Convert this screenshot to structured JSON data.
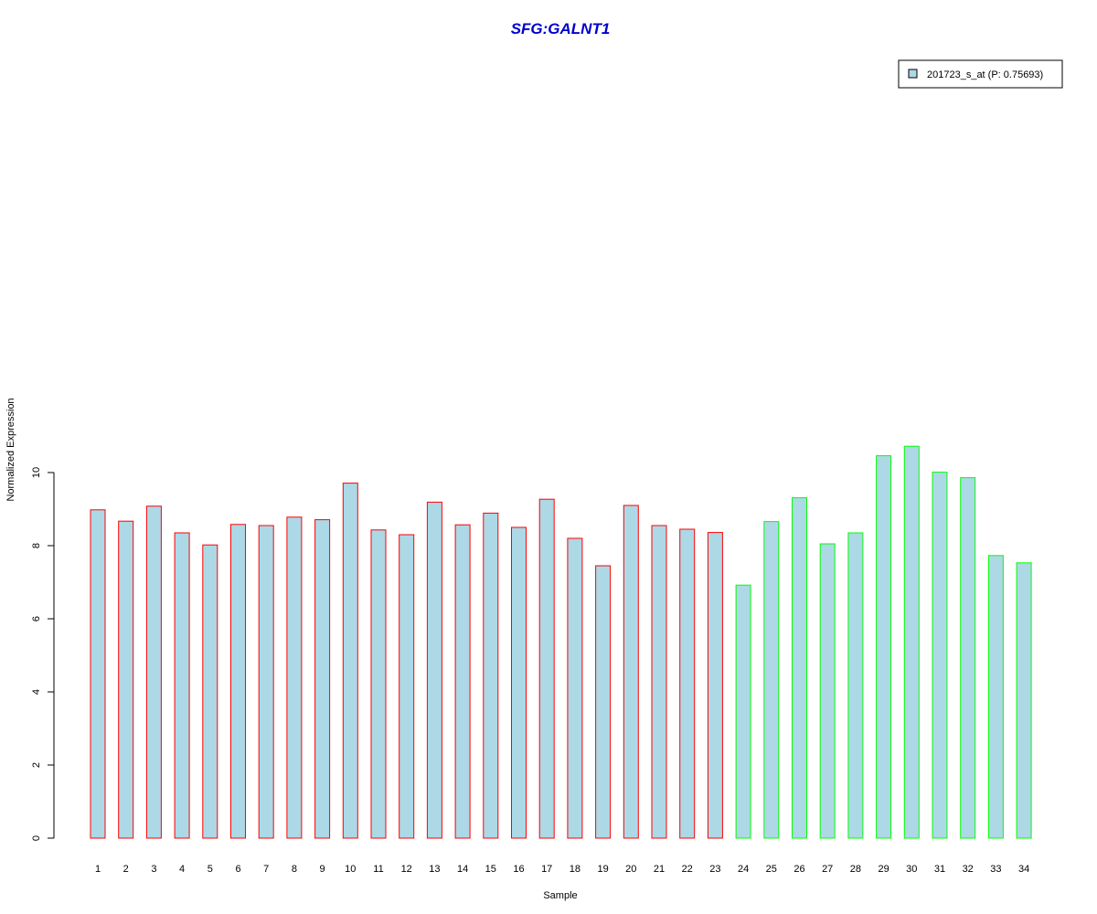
{
  "chart_data": {
    "type": "bar",
    "title": "SFG:GALNT1",
    "xlabel": "Sample",
    "ylabel": "Normalized Expression",
    "ylim": [
      0,
      10.8
    ],
    "yticks": [
      "0",
      "2",
      "4",
      "6",
      "8",
      "10"
    ],
    "categories": [
      "1",
      "2",
      "3",
      "4",
      "5",
      "6",
      "7",
      "8",
      "9",
      "10",
      "11",
      "12",
      "13",
      "14",
      "15",
      "16",
      "17",
      "18",
      "19",
      "20",
      "21",
      "22",
      "23",
      "24",
      "25",
      "26",
      "27",
      "28",
      "29",
      "30",
      "31",
      "32",
      "33",
      "34"
    ],
    "series": [
      {
        "name": "201723_s_at (P: 0.75693)",
        "values": [
          8.98,
          8.67,
          9.08,
          8.35,
          8.02,
          8.58,
          8.55,
          8.78,
          8.71,
          9.71,
          8.43,
          8.3,
          9.19,
          8.57,
          8.89,
          8.5,
          9.27,
          8.2,
          7.45,
          9.1,
          8.55,
          8.45,
          8.36,
          6.92,
          8.66,
          9.31,
          8.05,
          8.35,
          10.46,
          10.72,
          10.01,
          9.86,
          7.73,
          7.53
        ],
        "fill": "#add8e6"
      }
    ],
    "bar_border_colors": [
      "#ff0000",
      "#ff0000",
      "#ff0000",
      "#ff0000",
      "#ff0000",
      "#ff0000",
      "#ff0000",
      "#ff0000",
      "#ff0000",
      "#ff0000",
      "#ff0000",
      "#ff0000",
      "#ff0000",
      "#ff0000",
      "#ff0000",
      "#ff0000",
      "#ff0000",
      "#ff0000",
      "#ff0000",
      "#ff0000",
      "#ff0000",
      "#ff0000",
      "#ff0000",
      "#00ff00",
      "#00ff00",
      "#00ff00",
      "#00ff00",
      "#00ff00",
      "#00ff00",
      "#00ff00",
      "#00ff00",
      "#00ff00",
      "#00ff00",
      "#00ff00"
    ],
    "title_color": "#0000cd",
    "grid": false,
    "legend_position": "top-right"
  }
}
